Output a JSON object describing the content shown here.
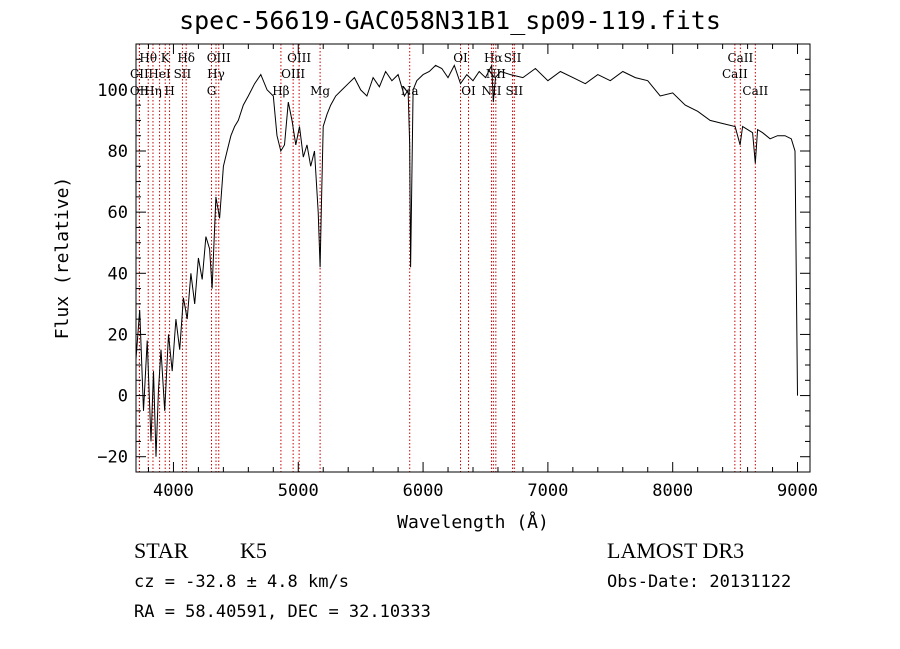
{
  "chart_data": {
    "type": "line",
    "title": "spec-56619-GAC058N31B1_sp09-119.fits",
    "xlabel": "Wavelength (Å)",
    "ylabel": "Flux (relative)",
    "xlim": [
      3700,
      9100
    ],
    "ylim": [
      -25,
      115
    ],
    "x_ticks": [
      4000,
      5000,
      6000,
      7000,
      8000,
      9000
    ],
    "y_ticks": [
      -20,
      0,
      20,
      40,
      60,
      80,
      100
    ],
    "series": [
      {
        "name": "flux",
        "x": [
          3700,
          3730,
          3760,
          3790,
          3820,
          3840,
          3860,
          3880,
          3900,
          3930,
          3960,
          3990,
          4020,
          4050,
          4080,
          4110,
          4140,
          4170,
          4200,
          4230,
          4260,
          4290,
          4310,
          4340,
          4370,
          4400,
          4430,
          4460,
          4490,
          4520,
          4560,
          4600,
          4650,
          4700,
          4750,
          4800,
          4830,
          4860,
          4890,
          4920,
          4950,
          4980,
          5010,
          5040,
          5070,
          5100,
          5130,
          5160,
          5175,
          5185,
          5200,
          5230,
          5260,
          5300,
          5350,
          5400,
          5450,
          5500,
          5550,
          5600,
          5650,
          5700,
          5750,
          5800,
          5850,
          5880,
          5893,
          5900,
          5920,
          5950,
          6000,
          6050,
          6100,
          6150,
          6200,
          6250,
          6300,
          6350,
          6400,
          6450,
          6500,
          6550,
          6563,
          6580,
          6620,
          6700,
          6800,
          6900,
          7000,
          7100,
          7200,
          7300,
          7400,
          7500,
          7600,
          7700,
          7800,
          7900,
          8000,
          8100,
          8200,
          8300,
          8400,
          8500,
          8540,
          8560,
          8600,
          8640,
          8662,
          8680,
          8720,
          8780,
          8840,
          8900,
          8950,
          8980,
          9000
        ],
        "y": [
          12,
          28,
          -5,
          18,
          -15,
          8,
          -20,
          2,
          15,
          -5,
          20,
          8,
          25,
          15,
          32,
          25,
          40,
          30,
          45,
          38,
          52,
          48,
          35,
          65,
          58,
          75,
          80,
          85,
          88,
          90,
          95,
          98,
          102,
          105,
          100,
          98,
          85,
          80,
          82,
          96,
          90,
          82,
          88,
          78,
          82,
          75,
          80,
          60,
          42,
          62,
          88,
          92,
          95,
          98,
          100,
          102,
          104,
          100,
          98,
          104,
          101,
          106,
          103,
          105,
          98,
          100,
          82,
          42,
          100,
          103,
          105,
          106,
          108,
          107,
          104,
          108,
          102,
          105,
          103,
          106,
          104,
          108,
          96,
          104,
          106,
          105,
          104,
          107,
          103,
          106,
          104,
          102,
          105,
          103,
          106,
          104,
          103,
          98,
          99,
          95,
          93,
          90,
          89,
          88,
          82,
          88,
          87,
          86,
          76,
          87,
          86,
          84,
          85,
          85,
          84,
          80,
          0
        ]
      }
    ]
  },
  "emission_lines": [
    {
      "label": "Hθ",
      "wave": 3798,
      "row": 1
    },
    {
      "label": "CII",
      "wave": 3727,
      "row": 2
    },
    {
      "label": "OII",
      "wave": 3728,
      "row": 3
    },
    {
      "label": "K",
      "wave": 3934,
      "row": 1
    },
    {
      "label": "HeI",
      "wave": 3889,
      "row": 2
    },
    {
      "label": "Hη",
      "wave": 3836,
      "row": 3
    },
    {
      "label": "Hδ",
      "wave": 4102,
      "row": 1
    },
    {
      "label": "SII",
      "wave": 4072,
      "row": 2
    },
    {
      "label": "H",
      "wave": 3969,
      "row": 3
    },
    {
      "label": "OIII",
      "wave": 4363,
      "row": 1
    },
    {
      "label": "Hγ",
      "wave": 4341,
      "row": 2
    },
    {
      "label": "G",
      "wave": 4305,
      "row": 3
    },
    {
      "label": "OIII",
      "wave": 5007,
      "row": 1
    },
    {
      "label": "OIII",
      "wave": 4959,
      "row": 2
    },
    {
      "label": "Hβ",
      "wave": 4861,
      "row": 3
    },
    {
      "label": "Mg",
      "wave": 5175,
      "row": 3
    },
    {
      "label": "Na",
      "wave": 5893,
      "row": 3
    },
    {
      "label": "OI",
      "wave": 6300,
      "row": 1
    },
    {
      "label": "OI",
      "wave": 6364,
      "row": 3
    },
    {
      "label": "Hα",
      "wave": 6563,
      "row": 1
    },
    {
      "label": "SII",
      "wave": 6717,
      "row": 1
    },
    {
      "label": "NII",
      "wave": 6583,
      "row": 2
    },
    {
      "label": "NII",
      "wave": 6548,
      "row": 3
    },
    {
      "label": "SII",
      "wave": 6731,
      "row": 3
    },
    {
      "label": "CaII",
      "wave": 8542,
      "row": 1
    },
    {
      "label": "CaII",
      "wave": 8498,
      "row": 2
    },
    {
      "label": "CaII",
      "wave": 8662,
      "row": 3
    }
  ],
  "info": {
    "obj_class": "STAR",
    "obj_subclass": "K5",
    "survey": "LAMOST DR3",
    "cz": "cz = -32.8 ± 4.8 km/s",
    "obs_date": "Obs-Date: 20131122",
    "radec": "RA =  58.40591, DEC =  32.10333"
  },
  "colors": {
    "line": "#000000",
    "emission": "#cc0000",
    "axis": "#000000"
  }
}
